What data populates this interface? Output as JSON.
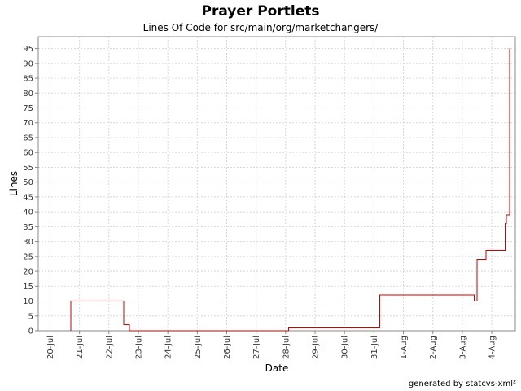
{
  "title": "Prayer Portlets",
  "subtitle": "Lines Of Code for src/main/org/marketchangers/",
  "footer": "generated by statcvs-xml²",
  "colors": {
    "line": "#cc0000",
    "grid": "#d8d8d8",
    "axis": "#888888",
    "plot_background": "#ffffff"
  },
  "chart_data": {
    "type": "line",
    "step": true,
    "title": "Prayer Portlets",
    "subtitle": "Lines Of Code for src/main/org/marketchangers/",
    "xlabel": "Date",
    "ylabel": "Lines",
    "ylim": [
      0,
      99
    ],
    "yticks": [
      0,
      5,
      10,
      15,
      20,
      25,
      30,
      35,
      40,
      45,
      50,
      55,
      60,
      65,
      70,
      75,
      80,
      85,
      90,
      95
    ],
    "xlim": [
      19.6,
      35.8
    ],
    "xticks": [
      {
        "label": "20-Jul",
        "value": 20
      },
      {
        "label": "21-Jul",
        "value": 21
      },
      {
        "label": "22-Jul",
        "value": 22
      },
      {
        "label": "23-Jul",
        "value": 23
      },
      {
        "label": "24-Jul",
        "value": 24
      },
      {
        "label": "25-Jul",
        "value": 25
      },
      {
        "label": "26-Jul",
        "value": 26
      },
      {
        "label": "27-Jul",
        "value": 27
      },
      {
        "label": "28-Jul",
        "value": 28
      },
      {
        "label": "29-Jul",
        "value": 29
      },
      {
        "label": "30-Jul",
        "value": 30
      },
      {
        "label": "31-Jul",
        "value": 31
      },
      {
        "label": "1-Aug",
        "value": 32
      },
      {
        "label": "2-Aug",
        "value": 33
      },
      {
        "label": "3-Aug",
        "value": 34
      },
      {
        "label": "4-Aug",
        "value": 35
      }
    ],
    "grid": true,
    "series": [
      {
        "x": [
          20.7,
          20.7,
          22.5,
          22.5,
          22.7,
          22.7,
          28.1,
          28.1,
          31.2,
          31.2,
          34.4,
          34.4,
          34.5,
          34.5,
          34.8,
          34.8,
          35.45,
          35.45,
          35.5,
          35.5,
          35.6,
          35.6
        ],
        "y": [
          0,
          10,
          10,
          2,
          2,
          0,
          0,
          1,
          1,
          12,
          12,
          10,
          10,
          24,
          24,
          27,
          27,
          36,
          36,
          39,
          39,
          95
        ]
      }
    ]
  }
}
